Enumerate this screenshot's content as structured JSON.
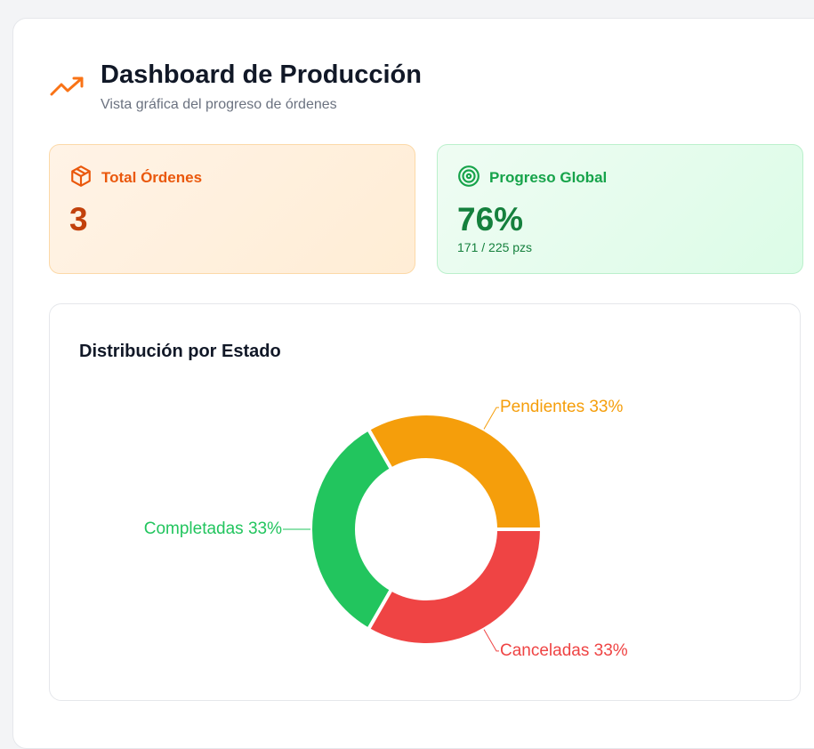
{
  "header": {
    "title": "Dashboard de Producción",
    "subtitle": "Vista gráfica del progreso de órdenes"
  },
  "cards": [
    {
      "label": "Total Órdenes",
      "value": "3"
    },
    {
      "label": "Progreso Global",
      "value": "76%",
      "detail": "171 / 225 pzs"
    }
  ],
  "chart_data": {
    "type": "pie",
    "title": "Distribución por Estado",
    "categories": [
      "Pendientes",
      "Completadas",
      "Canceladas"
    ],
    "values": [
      33,
      33,
      33
    ],
    "value_labels": [
      "33%",
      "33%",
      "33%"
    ],
    "colors": [
      "#f59e0b",
      "#22c55e",
      "#ef4444"
    ]
  }
}
